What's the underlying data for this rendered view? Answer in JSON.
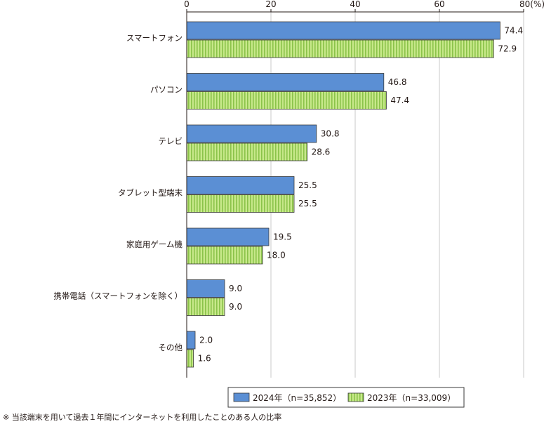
{
  "chart_data": {
    "type": "bar",
    "orientation": "horizontal",
    "categories": [
      "スマートフォン",
      "パソコン",
      "テレビ",
      "タブレット型端末",
      "家庭用ゲーム機",
      "携帯電話（スマートフォンを除く）",
      "その他"
    ],
    "series": [
      {
        "name": "2024年（n=35,852）",
        "values": [
          74.4,
          46.8,
          30.8,
          25.5,
          19.5,
          9.0,
          2.0
        ],
        "value_labels": [
          "74.4",
          "46.8",
          "30.8",
          "25.5",
          "19.5",
          "9.0",
          "2.0"
        ]
      },
      {
        "name": "2023年（n=33,009）",
        "values": [
          72.9,
          47.4,
          28.6,
          25.5,
          18.0,
          9.0,
          1.6
        ],
        "value_labels": [
          "72.9",
          "47.4",
          "28.6",
          "25.5",
          "18.0",
          "9.0",
          "1.6"
        ]
      }
    ],
    "xlim": [
      0,
      80
    ],
    "x_ticks": [
      "0",
      "20",
      "40",
      "60",
      "80(%)"
    ],
    "grid": true,
    "legend_position": "bottom-right"
  },
  "footnote": "※ 当該端末を用いて過去１年間にインターネットを利用したことのある人の比率",
  "colors": {
    "series_2024": "#5b8fd4",
    "series_2023_fill": "#c7e88a",
    "series_2023_stripe": "#8bc34a",
    "bar_border": "#3a3a3a",
    "grid": "#c8c8c8",
    "axis": "#231815"
  }
}
